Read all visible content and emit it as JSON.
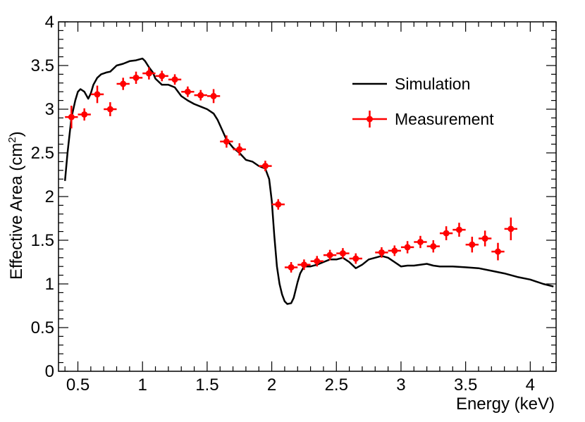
{
  "chart_data": {
    "type": "scatter",
    "title": "",
    "xlabel": "Energy (keV)",
    "ylabel_main": "Effective Area (cm",
    "ylabel_sup": "2",
    "ylabel_close": ")",
    "xlim": [
      0.35,
      4.2
    ],
    "ylim": [
      0,
      4
    ],
    "xticks": [
      0.5,
      1,
      1.5,
      2,
      2.5,
      3,
      3.5,
      4
    ],
    "xtick_labels": [
      "0.5",
      "1",
      "1.5",
      "2",
      "2.5",
      "3",
      "3.5",
      "4"
    ],
    "yticks": [
      0,
      0.5,
      1,
      1.5,
      2,
      2.5,
      3,
      3.5,
      4
    ],
    "ytick_labels": [
      "0",
      "0.5",
      "1",
      "1.5",
      "2",
      "2.5",
      "3",
      "3.5",
      "4"
    ],
    "legend": {
      "position": "top-right",
      "entries": [
        {
          "label": "Simulation",
          "style": "line"
        },
        {
          "label": "Measurement",
          "style": "marker-errorbar"
        }
      ]
    },
    "series": [
      {
        "name": "Simulation",
        "kind": "line",
        "color": "#000000",
        "x": [
          0.4,
          0.42,
          0.45,
          0.48,
          0.5,
          0.52,
          0.55,
          0.58,
          0.6,
          0.62,
          0.65,
          0.68,
          0.7,
          0.72,
          0.75,
          0.8,
          0.85,
          0.9,
          0.95,
          1.0,
          1.02,
          1.05,
          1.08,
          1.1,
          1.15,
          1.2,
          1.25,
          1.3,
          1.35,
          1.4,
          1.45,
          1.5,
          1.55,
          1.58,
          1.62,
          1.65,
          1.7,
          1.75,
          1.8,
          1.85,
          1.9,
          1.95,
          1.98,
          2.0,
          2.02,
          2.04,
          2.06,
          2.08,
          2.1,
          2.12,
          2.15,
          2.17,
          2.2,
          2.22,
          2.25,
          2.3,
          2.35,
          2.4,
          2.45,
          2.5,
          2.55,
          2.6,
          2.65,
          2.7,
          2.75,
          2.8,
          2.85,
          2.9,
          2.95,
          3.0,
          3.05,
          3.1,
          3.15,
          3.2,
          3.25,
          3.3,
          3.4,
          3.5,
          3.6,
          3.7,
          3.8,
          3.9,
          4.0,
          4.1,
          4.18
        ],
        "y": [
          2.18,
          2.5,
          2.9,
          3.1,
          3.2,
          3.23,
          3.2,
          3.12,
          3.18,
          3.28,
          3.36,
          3.4,
          3.41,
          3.42,
          3.43,
          3.5,
          3.52,
          3.55,
          3.56,
          3.58,
          3.55,
          3.48,
          3.42,
          3.35,
          3.28,
          3.28,
          3.25,
          3.15,
          3.1,
          3.06,
          3.03,
          3.0,
          2.95,
          2.88,
          2.75,
          2.65,
          2.56,
          2.5,
          2.42,
          2.4,
          2.35,
          2.32,
          2.2,
          1.95,
          1.55,
          1.2,
          1.0,
          0.88,
          0.8,
          0.77,
          0.78,
          0.84,
          1.02,
          1.12,
          1.2,
          1.2,
          1.22,
          1.25,
          1.28,
          1.28,
          1.3,
          1.25,
          1.18,
          1.22,
          1.28,
          1.3,
          1.32,
          1.3,
          1.25,
          1.2,
          1.21,
          1.21,
          1.22,
          1.23,
          1.21,
          1.2,
          1.2,
          1.19,
          1.18,
          1.15,
          1.12,
          1.08,
          1.05,
          1.0,
          0.97
        ]
      },
      {
        "name": "Measurement",
        "kind": "points",
        "color": "#ff0000",
        "x": [
          0.45,
          0.55,
          0.65,
          0.75,
          0.85,
          0.95,
          1.05,
          1.15,
          1.25,
          1.35,
          1.45,
          1.55,
          1.65,
          1.75,
          1.95,
          2.05,
          2.15,
          2.25,
          2.35,
          2.45,
          2.55,
          2.65,
          2.85,
          2.95,
          3.05,
          3.15,
          3.25,
          3.35,
          3.45,
          3.55,
          3.65,
          3.75,
          3.85
        ],
        "y": [
          2.91,
          2.94,
          3.17,
          3.0,
          3.29,
          3.36,
          3.41,
          3.38,
          3.34,
          3.2,
          3.16,
          3.15,
          2.63,
          2.54,
          2.35,
          1.91,
          1.19,
          1.22,
          1.26,
          1.33,
          1.35,
          1.29,
          1.36,
          1.38,
          1.42,
          1.48,
          1.43,
          1.58,
          1.62,
          1.45,
          1.52,
          1.37,
          1.63
        ],
        "x_err": 0.05,
        "y_err": [
          0.13,
          0.07,
          0.1,
          0.08,
          0.07,
          0.07,
          0.07,
          0.06,
          0.06,
          0.06,
          0.06,
          0.08,
          0.07,
          0.07,
          0.06,
          0.06,
          0.06,
          0.06,
          0.06,
          0.06,
          0.06,
          0.06,
          0.06,
          0.06,
          0.07,
          0.07,
          0.07,
          0.08,
          0.08,
          0.09,
          0.09,
          0.1,
          0.13
        ]
      }
    ]
  }
}
